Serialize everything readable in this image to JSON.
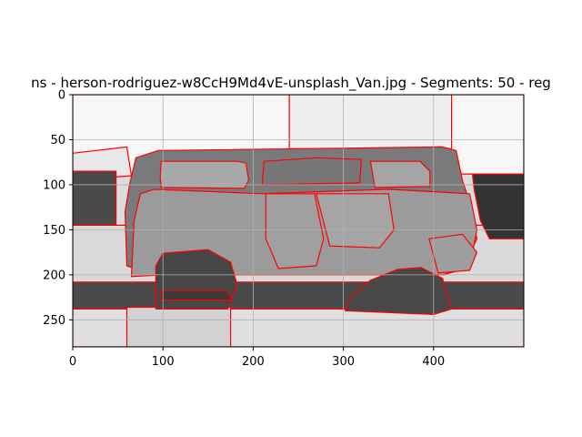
{
  "chart_data": {
    "type": "image",
    "title": "ns - herson-rodriguez-w8CcH9Md4vE-unsplash_Van.jpg - Segments: 50 - reg",
    "xlabel": "",
    "ylabel": "",
    "xlim": [
      0,
      500
    ],
    "ylim": [
      280,
      0
    ],
    "x_ticks": [
      "0",
      "100",
      "200",
      "300",
      "400"
    ],
    "y_ticks": [
      "0",
      "50",
      "100",
      "150",
      "200",
      "250"
    ],
    "grid": true,
    "segments_count": 50,
    "boundary_color": "#ff0000",
    "grid_color": "#b0b0b0",
    "regions": [
      {
        "shade": "#f7f7f7",
        "points": [
          [
            0,
            0
          ],
          [
            500,
            0
          ],
          [
            500,
            88
          ],
          [
            0,
            88
          ]
        ]
      },
      {
        "shade": "#efefef",
        "points": [
          [
            240,
            0
          ],
          [
            420,
            0
          ],
          [
            420,
            60
          ],
          [
            240,
            60
          ]
        ]
      },
      {
        "shade": "#e8e8e8",
        "points": [
          [
            0,
            65
          ],
          [
            60,
            58
          ],
          [
            65,
            90
          ],
          [
            0,
            95
          ]
        ]
      },
      {
        "shade": "#dadada",
        "points": [
          [
            0,
            145
          ],
          [
            500,
            145
          ],
          [
            500,
            210
          ],
          [
            0,
            210
          ]
        ]
      },
      {
        "shade": "#4a4a4a",
        "points": [
          [
            0,
            85
          ],
          [
            48,
            85
          ],
          [
            48,
            145
          ],
          [
            0,
            145
          ]
        ]
      },
      {
        "shade": "#333333",
        "points": [
          [
            443,
            88
          ],
          [
            500,
            88
          ],
          [
            500,
            160
          ],
          [
            462,
            160
          ],
          [
            452,
            140
          ],
          [
            445,
            105
          ]
        ]
      },
      {
        "shade": "#4a4a4a",
        "points": [
          [
            0,
            208
          ],
          [
            500,
            208
          ],
          [
            500,
            240
          ],
          [
            0,
            240
          ]
        ]
      },
      {
        "shade": "#e0e0e0",
        "points": [
          [
            0,
            238
          ],
          [
            500,
            238
          ],
          [
            500,
            280
          ],
          [
            0,
            280
          ]
        ]
      },
      {
        "shade": "#d2d2d2",
        "points": [
          [
            60,
            236
          ],
          [
            175,
            236
          ],
          [
            175,
            280
          ],
          [
            60,
            280
          ]
        ]
      },
      {
        "shade": "#7a7a7a",
        "points": [
          [
            63,
            100
          ],
          [
            70,
            70
          ],
          [
            95,
            62
          ],
          [
            410,
            58
          ],
          [
            425,
            62
          ],
          [
            432,
            95
          ],
          [
            440,
            120
          ],
          [
            448,
            160
          ],
          [
            432,
            195
          ],
          [
            390,
            200
          ],
          [
            90,
            200
          ],
          [
            60,
            190
          ],
          [
            58,
            130
          ]
        ]
      },
      {
        "shade": "#9b9b9b",
        "points": [
          [
            65,
            202
          ],
          [
            68,
            140
          ],
          [
            75,
            110
          ],
          [
            90,
            105
          ],
          [
            210,
            110
          ],
          [
            350,
            105
          ],
          [
            440,
            110
          ],
          [
            448,
            150
          ],
          [
            440,
            192
          ],
          [
            410,
            200
          ],
          [
            100,
            200
          ]
        ]
      },
      {
        "shade": "#a8a8a8",
        "points": [
          [
            97,
            92
          ],
          [
            98,
            74
          ],
          [
            183,
            74
          ],
          [
            192,
            76
          ],
          [
            195,
            95
          ],
          [
            190,
            104
          ],
          [
            98,
            103
          ]
        ]
      },
      {
        "shade": "#777777",
        "points": [
          [
            212,
            74
          ],
          [
            270,
            70
          ],
          [
            320,
            72
          ],
          [
            318,
            98
          ],
          [
            210,
            100
          ]
        ]
      },
      {
        "shade": "#a5a5a5",
        "points": [
          [
            330,
            74
          ],
          [
            385,
            74
          ],
          [
            396,
            85
          ],
          [
            396,
            102
          ],
          [
            335,
            103
          ]
        ]
      },
      {
        "shade": "#a0a0a0",
        "points": [
          [
            214,
            110
          ],
          [
            268,
            110
          ],
          [
            278,
            160
          ],
          [
            270,
            190
          ],
          [
            228,
            193
          ],
          [
            214,
            160
          ]
        ]
      },
      {
        "shade": "#a5a5a5",
        "points": [
          [
            270,
            110
          ],
          [
            350,
            110
          ],
          [
            356,
            150
          ],
          [
            340,
            170
          ],
          [
            285,
            168
          ]
        ]
      },
      {
        "shade": "#464646",
        "points": [
          [
            92,
            238
          ],
          [
            92,
            190
          ],
          [
            100,
            176
          ],
          [
            150,
            172
          ],
          [
            175,
            186
          ],
          [
            182,
            210
          ],
          [
            172,
            238
          ]
        ]
      },
      {
        "shade": "#484848",
        "points": [
          [
            302,
            240
          ],
          [
            308,
            225
          ],
          [
            330,
            206
          ],
          [
            360,
            194
          ],
          [
            386,
            192
          ],
          [
            410,
            204
          ],
          [
            420,
            238
          ],
          [
            400,
            244
          ]
        ]
      },
      {
        "shade": "#3a3a3a",
        "points": [
          [
            98,
            218
          ],
          [
            172,
            218
          ],
          [
            176,
            228
          ],
          [
            98,
            228
          ]
        ]
      },
      {
        "shade": "#9e9e9e",
        "points": [
          [
            395,
            160
          ],
          [
            432,
            155
          ],
          [
            448,
            175
          ],
          [
            440,
            195
          ],
          [
            405,
            198
          ]
        ]
      }
    ]
  }
}
